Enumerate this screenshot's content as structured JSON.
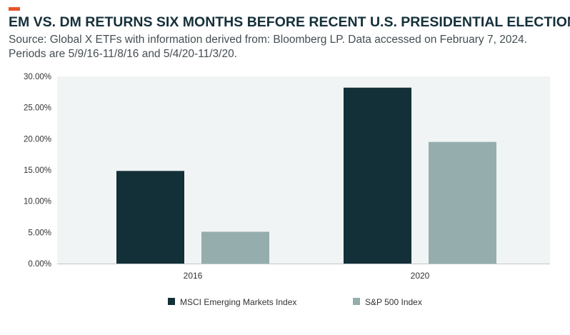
{
  "header": {
    "title": "EM VS. DM RETURNS SIX MONTHS BEFORE RECENT U.S. PRESIDENTIAL ELECTIONS",
    "subtitle": "Source: Global X ETFs with information derived from: Bloomberg LP. Data accessed on February 7, 2024. Periods are 5/9/16-11/8/16 and 5/4/20-11/3/20."
  },
  "colors": {
    "accent": "#e8542a",
    "plot_background": "#f1f4f4",
    "series_em": "#132f37",
    "series_dm": "#95adad"
  },
  "chart_data": {
    "type": "bar",
    "categories": [
      "2016",
      "2020"
    ],
    "series": [
      {
        "name": "MSCI Emerging Markets Index",
        "values": [
          14.85,
          28.2
        ]
      },
      {
        "name": "S&P 500 Index",
        "values": [
          5.1,
          19.5
        ]
      }
    ],
    "ylim": [
      0,
      30
    ],
    "yticks": [
      0,
      5,
      10,
      15,
      20,
      25,
      30
    ],
    "ytick_labels": [
      "0.00%",
      "5.00%",
      "10.00%",
      "15.00%",
      "20.00%",
      "25.00%",
      "30.00%"
    ],
    "legend_position": "bottom",
    "grid": false
  }
}
